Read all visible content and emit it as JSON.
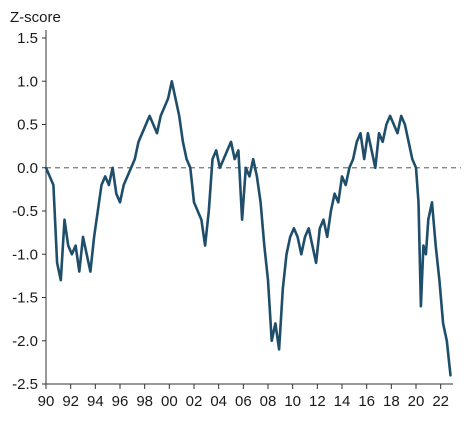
{
  "chart_data": {
    "type": "line",
    "title": "",
    "xlabel": "",
    "ylabel": "Z-score",
    "xlim": [
      1990,
      2023
    ],
    "ylim": [
      -2.5,
      1.5
    ],
    "y_ticks": [
      "1.5",
      "1.0",
      "0.5",
      "0.0",
      "-0.5",
      "-1.0",
      "-1.5",
      "-2.0",
      "-2.5"
    ],
    "x_ticks": [
      "90",
      "92",
      "94",
      "96",
      "98",
      "00",
      "02",
      "04",
      "06",
      "08",
      "10",
      "12",
      "14",
      "16",
      "18",
      "20",
      "22"
    ],
    "reference_line": {
      "y": 0,
      "style": "dashed"
    },
    "grid": false,
    "legend": "none",
    "series": [
      {
        "color": "#1f4e6b",
        "x": [
          1990.0,
          1990.3,
          1990.6,
          1990.9,
          1991.2,
          1991.5,
          1991.8,
          1992.1,
          1992.4,
          1992.7,
          1993.0,
          1993.3,
          1993.6,
          1993.9,
          1994.2,
          1994.5,
          1994.8,
          1995.1,
          1995.4,
          1995.7,
          1996.0,
          1996.3,
          1996.6,
          1996.9,
          1997.2,
          1997.5,
          1997.8,
          1998.1,
          1998.4,
          1998.7,
          1999.0,
          1999.3,
          1999.6,
          1999.9,
          2000.2,
          2000.5,
          2000.8,
          2001.1,
          2001.4,
          2001.7,
          2002.0,
          2002.3,
          2002.6,
          2002.9,
          2003.2,
          2003.5,
          2003.8,
          2004.1,
          2004.4,
          2004.7,
          2005.0,
          2005.3,
          2005.6,
          2005.9,
          2006.2,
          2006.5,
          2006.8,
          2007.1,
          2007.4,
          2007.7,
          2008.0,
          2008.3,
          2008.6,
          2008.9,
          2009.2,
          2009.5,
          2009.8,
          2010.1,
          2010.4,
          2010.7,
          2011.0,
          2011.3,
          2011.6,
          2011.9,
          2012.2,
          2012.5,
          2012.8,
          2013.1,
          2013.4,
          2013.7,
          2014.0,
          2014.3,
          2014.6,
          2014.9,
          2015.2,
          2015.5,
          2015.8,
          2016.1,
          2016.4,
          2016.7,
          2017.0,
          2017.3,
          2017.6,
          2017.9,
          2018.2,
          2018.5,
          2018.8,
          2019.1,
          2019.4,
          2019.7,
          2020.0,
          2020.2,
          2020.4,
          2020.6,
          2020.8,
          2021.0,
          2021.3,
          2021.6,
          2021.9,
          2022.2,
          2022.5,
          2022.8
        ],
        "y": [
          0.0,
          -0.1,
          -0.2,
          -1.1,
          -1.3,
          -0.6,
          -0.9,
          -1.0,
          -0.9,
          -1.2,
          -0.8,
          -1.0,
          -1.2,
          -0.8,
          -0.5,
          -0.2,
          -0.1,
          -0.2,
          0.0,
          -0.3,
          -0.4,
          -0.2,
          -0.1,
          0.0,
          0.1,
          0.3,
          0.4,
          0.5,
          0.6,
          0.5,
          0.4,
          0.6,
          0.7,
          0.8,
          1.0,
          0.8,
          0.6,
          0.3,
          0.1,
          0.0,
          -0.4,
          -0.5,
          -0.6,
          -0.9,
          -0.5,
          0.1,
          0.2,
          0.0,
          0.1,
          0.2,
          0.3,
          0.1,
          0.2,
          -0.6,
          0.0,
          -0.1,
          0.1,
          -0.1,
          -0.4,
          -0.9,
          -1.3,
          -2.0,
          -1.8,
          -2.1,
          -1.4,
          -1.0,
          -0.8,
          -0.7,
          -0.8,
          -1.0,
          -0.8,
          -0.7,
          -0.9,
          -1.1,
          -0.7,
          -0.6,
          -0.8,
          -0.5,
          -0.3,
          -0.4,
          -0.1,
          -0.2,
          0.0,
          0.1,
          0.3,
          0.4,
          0.1,
          0.4,
          0.2,
          0.0,
          0.4,
          0.3,
          0.5,
          0.6,
          0.5,
          0.4,
          0.6,
          0.5,
          0.3,
          0.1,
          0.0,
          -0.4,
          -1.6,
          -0.9,
          -1.0,
          -0.6,
          -0.4,
          -0.9,
          -1.3,
          -1.8,
          -2.0,
          -2.4
        ]
      }
    ]
  }
}
